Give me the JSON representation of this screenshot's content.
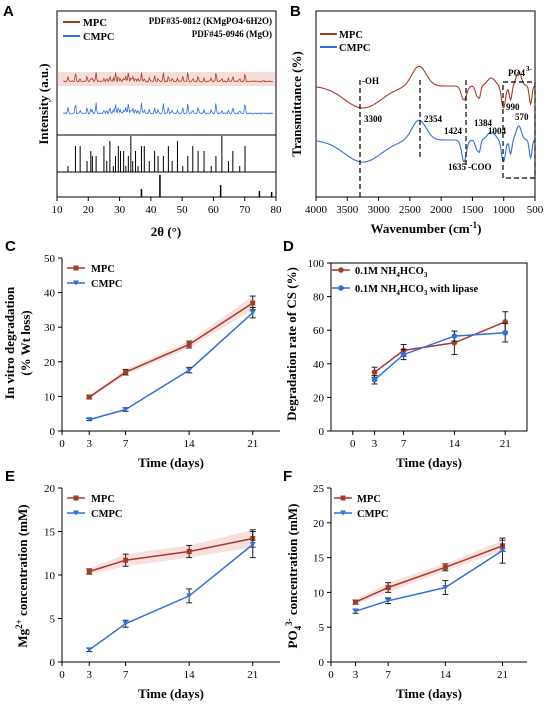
{
  "colors": {
    "mpc": "#a83a28",
    "cmpc": "#2f6fe0",
    "ax": "#000000",
    "band": "#f2c7c2"
  },
  "panels": {
    "A": "A",
    "B": "B",
    "C": "C",
    "D": "D",
    "E": "E",
    "F": "F"
  },
  "chart_data": [
    {
      "panel": "A",
      "type": "line",
      "xlabel": "2θ (°)",
      "ylabel": "Intensity (a.u.)",
      "xlim": [
        10,
        80
      ],
      "xticks": [
        "10",
        "20",
        "30",
        "40",
        "50",
        "60",
        "70",
        "80"
      ],
      "series": [
        {
          "name": "MPC"
        },
        {
          "name": "CMPC"
        }
      ],
      "annotations": [
        "PDF#35-0812 (KMgPO4·6H2O)",
        "PDF#45-0946 (MgO)"
      ],
      "reference_peaks_1": [
        13.5,
        15.9,
        17.4,
        19.6,
        20.8,
        21.3,
        22.5,
        25.0,
        25.9,
        26.9,
        28.0,
        28.7,
        29.6,
        30.3,
        31.3,
        32.0,
        32.8,
        33.6,
        34.2,
        35.1,
        35.9,
        37.0,
        37.9,
        39.5,
        41.2,
        42.3,
        44.0,
        45.6,
        46.8,
        48.5,
        50.2,
        51.8,
        53.4,
        55.1,
        57.0,
        59.3,
        60.8,
        62.7,
        64.8,
        66.2,
        68.4,
        70.1
      ],
      "reference_peaks_2": [
        37.0,
        42.9,
        62.3,
        74.7,
        78.6
      ]
    },
    {
      "panel": "B",
      "type": "line",
      "xlabel": "Wavenumber (cm-1)",
      "ylabel": "Transmittance (%)",
      "xlim": [
        4000,
        500
      ],
      "xticks": [
        "4000",
        "3500",
        "3000",
        "2500",
        "2000",
        "1500",
        "1000",
        "500"
      ],
      "series": [
        {
          "name": "MPC"
        },
        {
          "name": "CMPC"
        }
      ],
      "annotations": {
        "oh": "-OH",
        "b3300": "3300",
        "b2354": "2354",
        "b1424": "1424",
        "b1384": "1384",
        "b1635": "1635",
        "coo": "-COO",
        "b1004": "1004",
        "b990": "990",
        "b570": "570",
        "po4": "PO4",
        "po4sup": "3-"
      }
    },
    {
      "panel": "C",
      "type": "line",
      "xlabel": "Time (days)",
      "ylabel": "In vitro degradation",
      "ylabel2": "(% Wt loss)",
      "xlim": [
        0,
        24
      ],
      "ylim": [
        0,
        50
      ],
      "xticks": [
        0,
        3,
        7,
        14,
        21
      ],
      "yticks": [
        0,
        10,
        20,
        30,
        40,
        50
      ],
      "x": [
        3,
        7,
        14,
        21
      ],
      "series": [
        {
          "name": "MPC",
          "values": [
            9.8,
            17.0,
            25.0,
            37.0
          ],
          "err": [
            0.5,
            0.8,
            1.0,
            2.0
          ]
        },
        {
          "name": "CMPC",
          "values": [
            3.3,
            6.2,
            17.6,
            34.2
          ],
          "err": [
            0.3,
            0.5,
            0.8,
            1.5
          ]
        }
      ]
    },
    {
      "panel": "D",
      "type": "line",
      "xlabel": "Time (days)",
      "ylabel": "Degradation rate of CS (%)",
      "xlim": [
        -3,
        24
      ],
      "ylim": [
        0,
        100
      ],
      "xticks": [
        0,
        3,
        7,
        14,
        21
      ],
      "yticks": [
        0,
        20,
        40,
        60,
        80,
        100
      ],
      "x": [
        3,
        7,
        14,
        21
      ],
      "series": [
        {
          "name": "0.1M NH4HCO3",
          "values": [
            35.0,
            48.0,
            52.5,
            65.0
          ],
          "err": [
            3.0,
            3.5,
            7.0,
            6.0
          ]
        },
        {
          "name": "0.1M NH4HCO3 with lipase",
          "values": [
            30.5,
            45.5,
            56.5,
            58.5
          ],
          "err": [
            2.5,
            3.0,
            3.0,
            5.5
          ]
        }
      ]
    },
    {
      "panel": "E",
      "type": "line",
      "xlabel": "Time (days)",
      "ylabel": "Mg2+ concentration (mM)",
      "xlim": [
        0,
        24
      ],
      "ylim": [
        0,
        20
      ],
      "xticks": [
        0,
        3,
        7,
        14,
        21
      ],
      "yticks": [
        0,
        5,
        10,
        15,
        20
      ],
      "x": [
        3,
        7,
        14,
        21
      ],
      "series": [
        {
          "name": "MPC",
          "values": [
            10.4,
            11.7,
            12.7,
            14.2
          ],
          "err": [
            0.3,
            0.7,
            0.7,
            1.0
          ]
        },
        {
          "name": "CMPC",
          "values": [
            1.4,
            4.4,
            7.6,
            13.5
          ],
          "err": [
            0.2,
            0.4,
            0.8,
            1.5
          ]
        }
      ]
    },
    {
      "panel": "F",
      "type": "line",
      "xlabel": "Time (days)",
      "ylabel": "PO43- concentration (mM)",
      "xlim": [
        0,
        24
      ],
      "ylim": [
        0,
        25
      ],
      "xticks": [
        0,
        3,
        7,
        14,
        21
      ],
      "yticks": [
        0,
        5,
        10,
        15,
        20,
        25
      ],
      "x": [
        3,
        7,
        14,
        21
      ],
      "series": [
        {
          "name": "MPC",
          "values": [
            8.6,
            10.7,
            13.6,
            16.7
          ],
          "err": [
            0.3,
            0.7,
            0.5,
            0.8
          ]
        },
        {
          "name": "CMPC",
          "values": [
            7.3,
            8.8,
            10.7,
            16.0
          ],
          "err": [
            0.3,
            0.4,
            1.0,
            1.8
          ]
        }
      ]
    }
  ]
}
